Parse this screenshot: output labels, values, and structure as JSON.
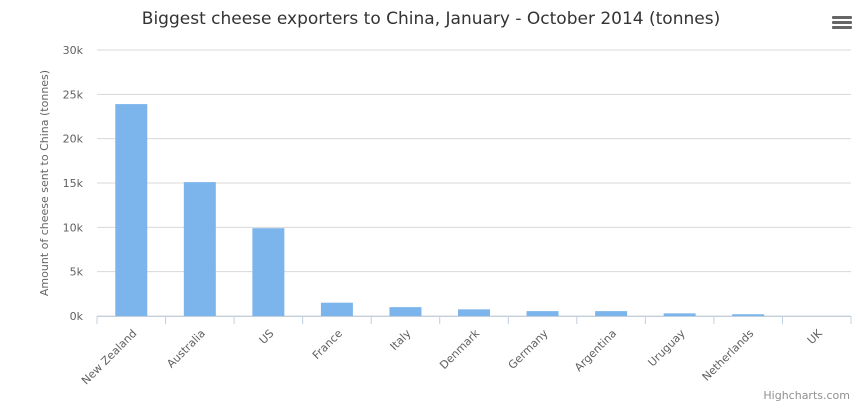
{
  "chart_data": {
    "type": "bar",
    "title": "Biggest cheese exporters to China, January - October 2014 (tonnes)",
    "xlabel": "",
    "ylabel": "Amount of cheese sent to China (tonnes)",
    "categories": [
      "New Zealand",
      "Australia",
      "US",
      "France",
      "Italy",
      "Denmark",
      "Germany",
      "Argentina",
      "Uruguay",
      "Netherlands",
      "UK"
    ],
    "values": [
      23900,
      15100,
      9900,
      1500,
      1000,
      750,
      550,
      550,
      300,
      200,
      0
    ],
    "ylim": [
      0,
      30000
    ],
    "yticks": [
      "0k",
      "5k",
      "10k",
      "15k",
      "20k",
      "25k",
      "30k"
    ],
    "grid": true,
    "legend": "none",
    "bar_color": "#7cb5ec"
  },
  "credits": "Highcharts.com",
  "menu": {
    "icon": "hamburger-menu-icon"
  }
}
